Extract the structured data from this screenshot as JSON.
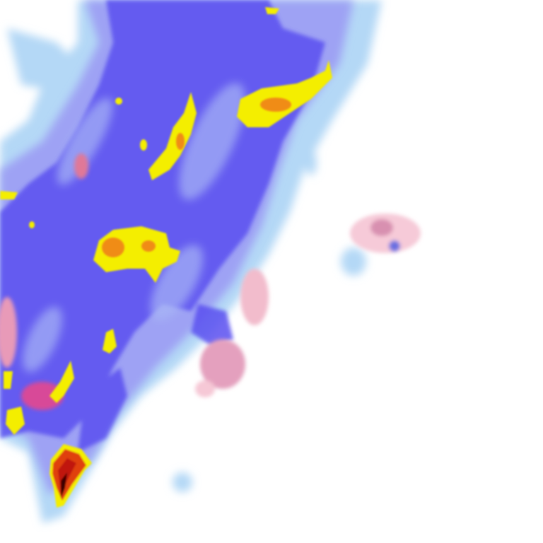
{
  "map": {
    "type": "precipitation-radar-tile",
    "legend_colors": {
      "light": "#aed4f5",
      "moderate_light": "#9a9cf2",
      "moderate": "#5a4bf0",
      "heavy": "#f2ee00",
      "very_heavy": "#f08a10",
      "intense": "#d02010",
      "extreme": "#400000",
      "mixed_light": "#f6c4d2",
      "mixed_moderate": "#e080a0",
      "mixed_heavy": "#d0208a"
    }
  }
}
